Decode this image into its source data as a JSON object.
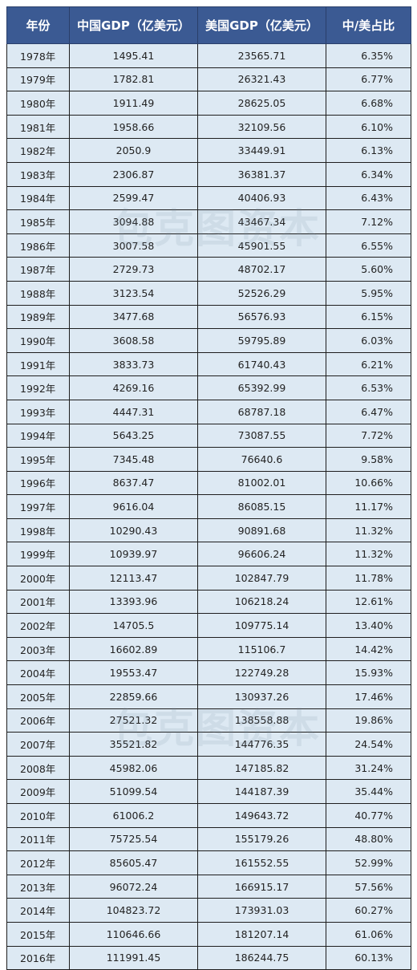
{
  "table": {
    "headers": [
      "年份",
      "中国GDP（亿美元）",
      "美国GDP（亿美元）",
      "中/美占比"
    ],
    "rows": [
      [
        "1978年",
        "1495.41",
        "23565.71",
        "6.35%"
      ],
      [
        "1979年",
        "1782.81",
        "26321.43",
        "6.77%"
      ],
      [
        "1980年",
        "1911.49",
        "28625.05",
        "6.68%"
      ],
      [
        "1981年",
        "1958.66",
        "32109.56",
        "6.10%"
      ],
      [
        "1982年",
        "2050.9",
        "33449.91",
        "6.13%"
      ],
      [
        "1983年",
        "2306.87",
        "36381.37",
        "6.34%"
      ],
      [
        "1984年",
        "2599.47",
        "40406.93",
        "6.43%"
      ],
      [
        "1985年",
        "3094.88",
        "43467.34",
        "7.12%"
      ],
      [
        "1986年",
        "3007.58",
        "45901.55",
        "6.55%"
      ],
      [
        "1987年",
        "2729.73",
        "48702.17",
        "5.60%"
      ],
      [
        "1988年",
        "3123.54",
        "52526.29",
        "5.95%"
      ],
      [
        "1989年",
        "3477.68",
        "56576.93",
        "6.15%"
      ],
      [
        "1990年",
        "3608.58",
        "59795.89",
        "6.03%"
      ],
      [
        "1991年",
        "3833.73",
        "61740.43",
        "6.21%"
      ],
      [
        "1992年",
        "4269.16",
        "65392.99",
        "6.53%"
      ],
      [
        "1993年",
        "4447.31",
        "68787.18",
        "6.47%"
      ],
      [
        "1994年",
        "5643.25",
        "73087.55",
        "7.72%"
      ],
      [
        "1995年",
        "7345.48",
        "76640.6",
        "9.58%"
      ],
      [
        "1996年",
        "8637.47",
        "81002.01",
        "10.66%"
      ],
      [
        "1997年",
        "9616.04",
        "86085.15",
        "11.17%"
      ],
      [
        "1998年",
        "10290.43",
        "90891.68",
        "11.32%"
      ],
      [
        "1999年",
        "10939.97",
        "96606.24",
        "11.32%"
      ],
      [
        "2000年",
        "12113.47",
        "102847.79",
        "11.78%"
      ],
      [
        "2001年",
        "13393.96",
        "106218.24",
        "12.61%"
      ],
      [
        "2002年",
        "14705.5",
        "109775.14",
        "13.40%"
      ],
      [
        "2003年",
        "16602.89",
        "115106.7",
        "14.42%"
      ],
      [
        "2004年",
        "19553.47",
        "122749.28",
        "15.93%"
      ],
      [
        "2005年",
        "22859.66",
        "130937.26",
        "17.46%"
      ],
      [
        "2006年",
        "27521.32",
        "138558.88",
        "19.86%"
      ],
      [
        "2007年",
        "35521.82",
        "144776.35",
        "24.54%"
      ],
      [
        "2008年",
        "45982.06",
        "147185.82",
        "31.24%"
      ],
      [
        "2009年",
        "51099.54",
        "144187.39",
        "35.44%"
      ],
      [
        "2010年",
        "61006.2",
        "149643.72",
        "40.77%"
      ],
      [
        "2011年",
        "75725.54",
        "155179.26",
        "48.80%"
      ],
      [
        "2012年",
        "85605.47",
        "161552.55",
        "52.99%"
      ],
      [
        "2013年",
        "96072.24",
        "166915.17",
        "57.56%"
      ],
      [
        "2014年",
        "104823.72",
        "173931.03",
        "60.27%"
      ],
      [
        "2015年",
        "110646.66",
        "181207.14",
        "61.06%"
      ],
      [
        "2016年",
        "111991.45",
        "186244.75",
        "60.13%"
      ]
    ]
  },
  "watermark": {
    "text": "包克图资本"
  },
  "colors": {
    "header_bg": "#3b5a93",
    "header_text": "#ffffff",
    "cell_bg": "#dde9f3",
    "border": "#1e1e1e"
  }
}
